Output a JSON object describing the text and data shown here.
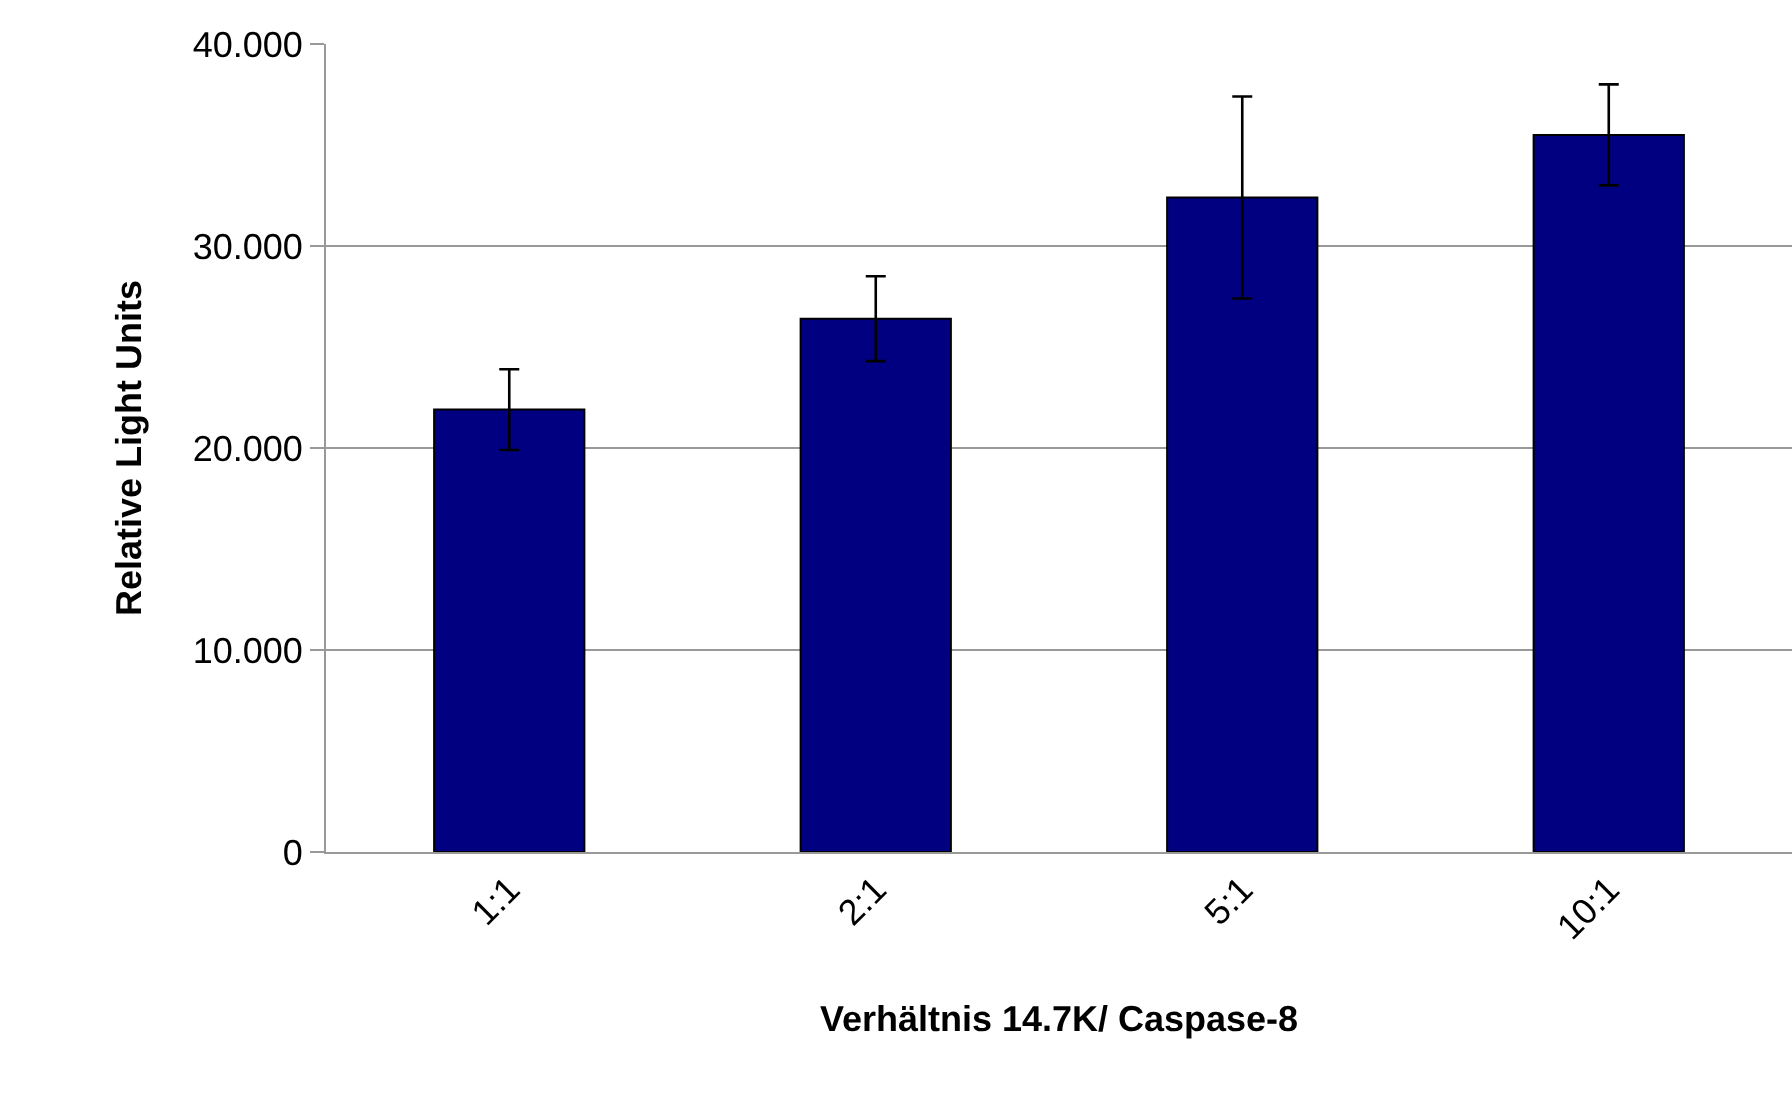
{
  "chart_data": {
    "type": "bar",
    "xlabel": "Verhältnis 14.7K/ Caspase-8",
    "ylabel": "Relative Light Units",
    "categories": [
      "1:1",
      "2:1",
      "5:1",
      "10:1"
    ],
    "series": [
      {
        "color": "#000080",
        "values": [
          21.9,
          26.4,
          32.4,
          35.5
        ],
        "errors": [
          2.0,
          2.1,
          5.0,
          2.5
        ]
      }
    ],
    "ylim": [
      0,
      40
    ],
    "yticks": [
      0,
      {
        "value": 10,
        "label": "10.000"
      },
      {
        "value": 20,
        "label": "20.000"
      },
      {
        "value": 30,
        "label": "30.000"
      },
      {
        "value": 40,
        "label": "40.000"
      }
    ],
    "grid": "y",
    "legend": false
  }
}
